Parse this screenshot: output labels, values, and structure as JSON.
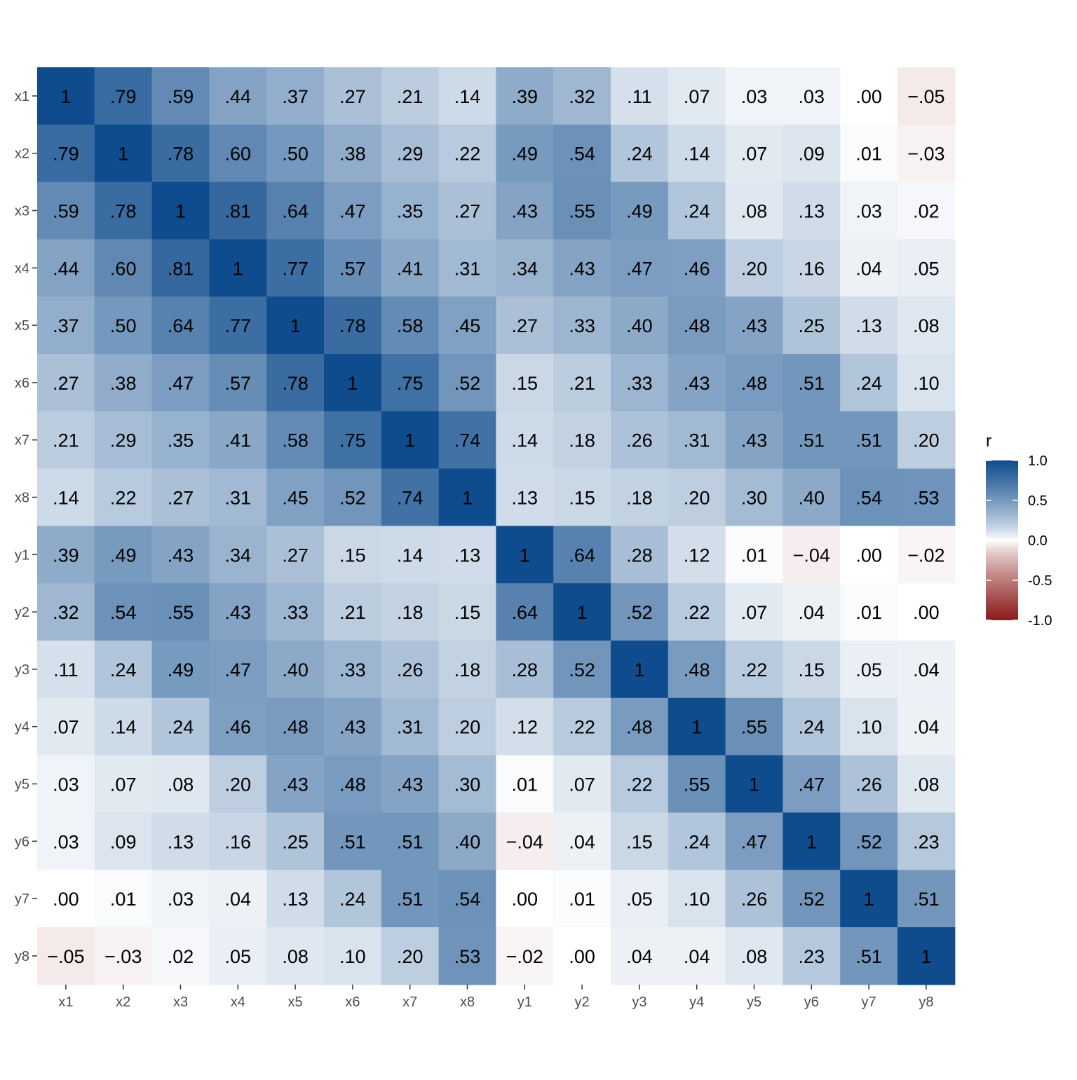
{
  "chart_data": {
    "type": "heatmap",
    "rows": [
      "x1",
      "x2",
      "x3",
      "x4",
      "x5",
      "x6",
      "x7",
      "x8",
      "y1",
      "y2",
      "y3",
      "y4",
      "y5",
      "y6",
      "y7",
      "y8"
    ],
    "columns": [
      "x1",
      "x2",
      "x3",
      "x4",
      "x5",
      "x6",
      "x7",
      "x8",
      "y1",
      "y2",
      "y3",
      "y4",
      "y5",
      "y6",
      "y7",
      "y8"
    ],
    "values": [
      [
        1.0,
        0.79,
        0.59,
        0.44,
        0.37,
        0.27,
        0.21,
        0.14,
        0.39,
        0.32,
        0.11,
        0.07,
        0.03,
        0.03,
        0.0,
        -0.05
      ],
      [
        0.79,
        1.0,
        0.78,
        0.6,
        0.5,
        0.38,
        0.29,
        0.22,
        0.49,
        0.54,
        0.24,
        0.14,
        0.07,
        0.09,
        0.01,
        -0.03
      ],
      [
        0.59,
        0.78,
        1.0,
        0.81,
        0.64,
        0.47,
        0.35,
        0.27,
        0.43,
        0.55,
        0.49,
        0.24,
        0.08,
        0.13,
        0.03,
        0.02
      ],
      [
        0.44,
        0.6,
        0.81,
        1.0,
        0.77,
        0.57,
        0.41,
        0.31,
        0.34,
        0.43,
        0.47,
        0.46,
        0.2,
        0.16,
        0.04,
        0.05
      ],
      [
        0.37,
        0.5,
        0.64,
        0.77,
        1.0,
        0.78,
        0.58,
        0.45,
        0.27,
        0.33,
        0.4,
        0.48,
        0.43,
        0.25,
        0.13,
        0.08
      ],
      [
        0.27,
        0.38,
        0.47,
        0.57,
        0.78,
        1.0,
        0.75,
        0.52,
        0.15,
        0.21,
        0.33,
        0.43,
        0.48,
        0.51,
        0.24,
        0.1
      ],
      [
        0.21,
        0.29,
        0.35,
        0.41,
        0.58,
        0.75,
        1.0,
        0.74,
        0.14,
        0.18,
        0.26,
        0.31,
        0.43,
        0.51,
        0.51,
        0.2
      ],
      [
        0.14,
        0.22,
        0.27,
        0.31,
        0.45,
        0.52,
        0.74,
        1.0,
        0.13,
        0.15,
        0.18,
        0.2,
        0.3,
        0.4,
        0.54,
        0.53
      ],
      [
        0.39,
        0.49,
        0.43,
        0.34,
        0.27,
        0.15,
        0.14,
        0.13,
        1.0,
        0.64,
        0.28,
        0.12,
        0.01,
        -0.04,
        0.0,
        -0.02
      ],
      [
        0.32,
        0.54,
        0.55,
        0.43,
        0.33,
        0.21,
        0.18,
        0.15,
        0.64,
        1.0,
        0.52,
        0.22,
        0.07,
        0.04,
        0.01,
        0.0
      ],
      [
        0.11,
        0.24,
        0.49,
        0.47,
        0.4,
        0.33,
        0.26,
        0.18,
        0.28,
        0.52,
        1.0,
        0.48,
        0.22,
        0.15,
        0.05,
        0.04
      ],
      [
        0.07,
        0.14,
        0.24,
        0.46,
        0.48,
        0.43,
        0.31,
        0.2,
        0.12,
        0.22,
        0.48,
        1.0,
        0.55,
        0.24,
        0.1,
        0.04
      ],
      [
        0.03,
        0.07,
        0.08,
        0.2,
        0.43,
        0.48,
        0.43,
        0.3,
        0.01,
        0.07,
        0.22,
        0.55,
        1.0,
        0.47,
        0.26,
        0.08
      ],
      [
        0.03,
        0.09,
        0.13,
        0.16,
        0.25,
        0.51,
        0.51,
        0.4,
        -0.04,
        0.04,
        0.15,
        0.24,
        0.47,
        1.0,
        0.52,
        0.23
      ],
      [
        0.0,
        0.01,
        0.03,
        0.04,
        0.13,
        0.24,
        0.51,
        0.54,
        0.0,
        0.01,
        0.05,
        0.1,
        0.26,
        0.52,
        1.0,
        0.51
      ],
      [
        -0.05,
        -0.03,
        0.02,
        0.05,
        0.08,
        0.1,
        0.2,
        0.53,
        -0.02,
        0.0,
        0.04,
        0.04,
        0.08,
        0.23,
        0.51,
        1.0
      ]
    ],
    "labels": [
      [
        "1",
        ".79",
        ".59",
        ".44",
        ".37",
        ".27",
        ".21",
        ".14",
        ".39",
        ".32",
        ".11",
        ".07",
        ".03",
        ".03",
        ".00",
        "−.05"
      ],
      [
        ".79",
        "1",
        ".78",
        ".60",
        ".50",
        ".38",
        ".29",
        ".22",
        ".49",
        ".54",
        ".24",
        ".14",
        ".07",
        ".09",
        ".01",
        "−.03"
      ],
      [
        ".59",
        ".78",
        "1",
        ".81",
        ".64",
        ".47",
        ".35",
        ".27",
        ".43",
        ".55",
        ".49",
        ".24",
        ".08",
        ".13",
        ".03",
        ".02"
      ],
      [
        ".44",
        ".60",
        ".81",
        "1",
        ".77",
        ".57",
        ".41",
        ".31",
        ".34",
        ".43",
        ".47",
        ".46",
        ".20",
        ".16",
        ".04",
        ".05"
      ],
      [
        ".37",
        ".50",
        ".64",
        ".77",
        "1",
        ".78",
        ".58",
        ".45",
        ".27",
        ".33",
        ".40",
        ".48",
        ".43",
        ".25",
        ".13",
        ".08"
      ],
      [
        ".27",
        ".38",
        ".47",
        ".57",
        ".78",
        "1",
        ".75",
        ".52",
        ".15",
        ".21",
        ".33",
        ".43",
        ".48",
        ".51",
        ".24",
        ".10"
      ],
      [
        ".21",
        ".29",
        ".35",
        ".41",
        ".58",
        ".75",
        "1",
        ".74",
        ".14",
        ".18",
        ".26",
        ".31",
        ".43",
        ".51",
        ".51",
        ".20"
      ],
      [
        ".14",
        ".22",
        ".27",
        ".31",
        ".45",
        ".52",
        ".74",
        "1",
        ".13",
        ".15",
        ".18",
        ".20",
        ".30",
        ".40",
        ".54",
        ".53"
      ],
      [
        ".39",
        ".49",
        ".43",
        ".34",
        ".27",
        ".15",
        ".14",
        ".13",
        "1",
        ".64",
        ".28",
        ".12",
        ".01",
        "−.04",
        ".00",
        "−.02"
      ],
      [
        ".32",
        ".54",
        ".55",
        ".43",
        ".33",
        ".21",
        ".18",
        ".15",
        ".64",
        "1",
        ".52",
        ".22",
        ".07",
        ".04",
        ".01",
        ".00"
      ],
      [
        ".11",
        ".24",
        ".49",
        ".47",
        ".40",
        ".33",
        ".26",
        ".18",
        ".28",
        ".52",
        "1",
        ".48",
        ".22",
        ".15",
        ".05",
        ".04"
      ],
      [
        ".07",
        ".14",
        ".24",
        ".46",
        ".48",
        ".43",
        ".31",
        ".20",
        ".12",
        ".22",
        ".48",
        "1",
        ".55",
        ".24",
        ".10",
        ".04"
      ],
      [
        ".03",
        ".07",
        ".08",
        ".20",
        ".43",
        ".48",
        ".43",
        ".30",
        ".01",
        ".07",
        ".22",
        ".55",
        "1",
        ".47",
        ".26",
        ".08"
      ],
      [
        ".03",
        ".09",
        ".13",
        ".16",
        ".25",
        ".51",
        ".51",
        ".40",
        "−.04",
        ".04",
        ".15",
        ".24",
        ".47",
        "1",
        ".52",
        ".23"
      ],
      [
        ".00",
        ".01",
        ".03",
        ".04",
        ".13",
        ".24",
        ".51",
        ".54",
        ".00",
        ".01",
        ".05",
        ".10",
        ".26",
        ".52",
        "1",
        ".51"
      ],
      [
        "−.05",
        "−.03",
        ".02",
        ".05",
        ".08",
        ".10",
        ".20",
        ".53",
        "−.02",
        ".00",
        ".04",
        ".04",
        ".08",
        ".23",
        ".51",
        "1"
      ]
    ],
    "legend": {
      "title": "r",
      "position": "right",
      "range": [
        -1.0,
        1.0
      ],
      "ticks": [
        1.0,
        0.5,
        0.0,
        -0.5,
        -1.0
      ],
      "tick_labels": [
        "1.0",
        "0.5",
        "0.0",
        "-0.5",
        "-1.0"
      ]
    },
    "colors": {
      "high": "#0f4c8d",
      "mid": "#ffffff",
      "low": "#8c1a1a",
      "label_text": "#000000",
      "tick_text": "#4d4d4d",
      "tick_line": "#333333"
    },
    "grid": false
  }
}
